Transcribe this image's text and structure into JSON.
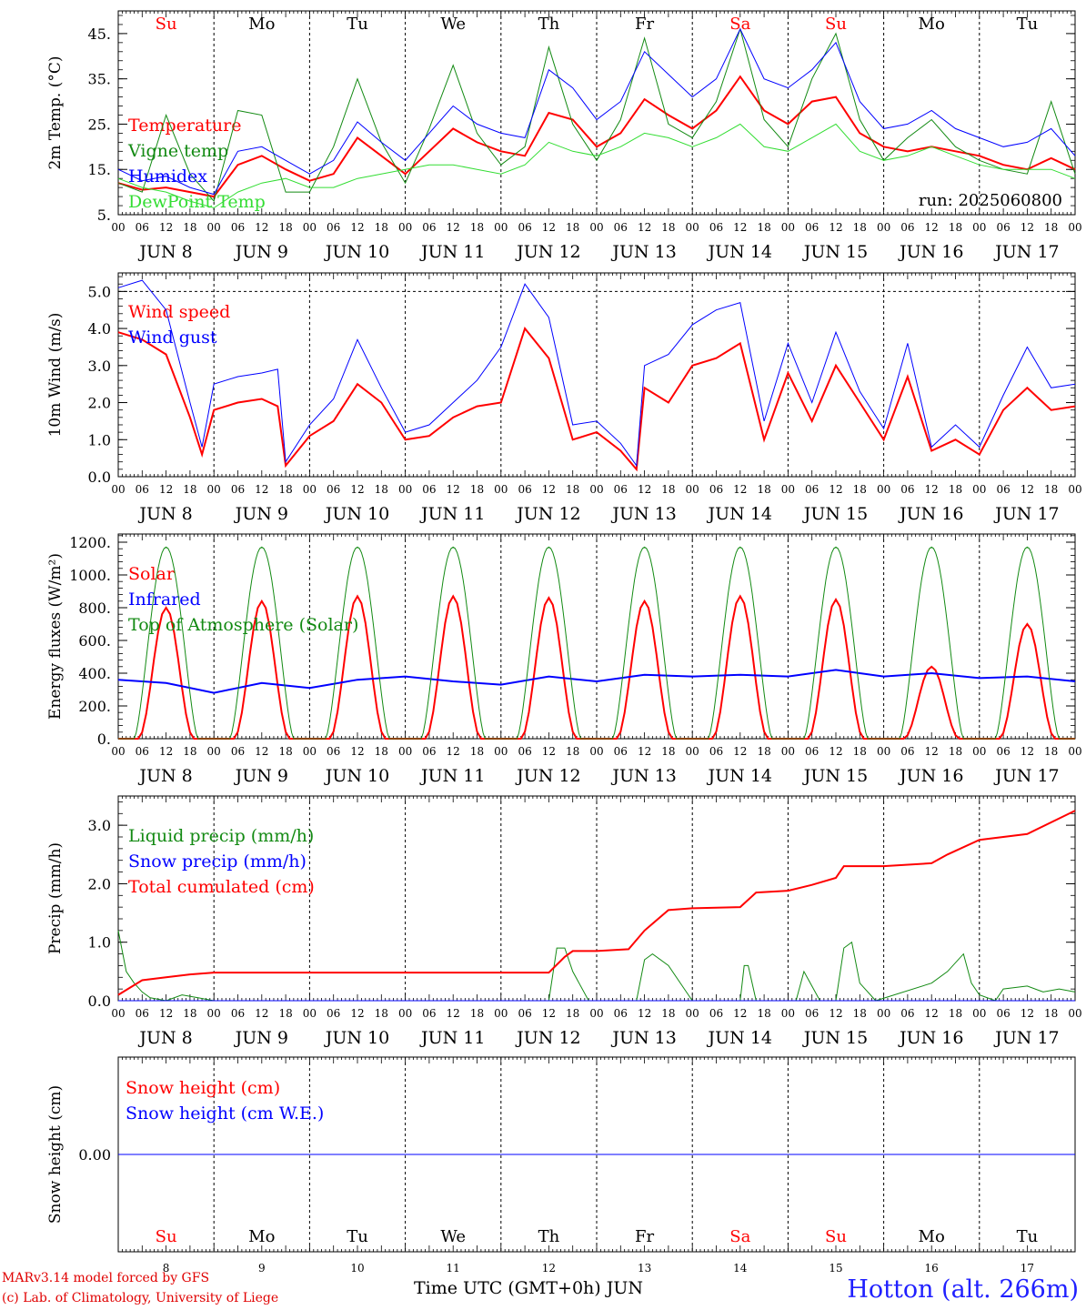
{
  "run_label": "run: 2025060800",
  "station_title": "Hotton (alt. 266m)",
  "model_credit": "MARv3.14 model forced by GFS",
  "copyright": "(c) Lab. of Climatology, University of Liege",
  "time_axis_label": "Time UTC (GMT+0h) JUN",
  "colors": {
    "red": "#ff0000",
    "green": "#138a13",
    "blue": "#0000ff",
    "lightgreen": "#33dd33",
    "grid": "#000000"
  },
  "days": [
    {
      "dow": "Su",
      "date": "8",
      "weekend": true
    },
    {
      "dow": "Mo",
      "date": "9",
      "weekend": false
    },
    {
      "dow": "Tu",
      "date": "10",
      "weekend": false
    },
    {
      "dow": "We",
      "date": "11",
      "weekend": false
    },
    {
      "dow": "Th",
      "date": "12",
      "weekend": false
    },
    {
      "dow": "Fr",
      "date": "13",
      "weekend": false
    },
    {
      "dow": "Sa",
      "date": "14",
      "weekend": true
    },
    {
      "dow": "Su",
      "date": "15",
      "weekend": true
    },
    {
      "dow": "Mo",
      "date": "16",
      "weekend": false
    },
    {
      "dow": "Tu",
      "date": "17",
      "weekend": false
    }
  ],
  "hour_ticks": [
    "00",
    "06",
    "12",
    "18"
  ],
  "month_label": "JUN",
  "chart_data": [
    {
      "type": "line",
      "ylabel": "2m Temp. (°C)",
      "ylim": [
        5,
        50
      ],
      "yticks": [
        5,
        15,
        25,
        35,
        45
      ],
      "ytick_labels": [
        "5.",
        "15.",
        "25.",
        "35.",
        "45."
      ],
      "x_unit": "hours since JUN 8 00 UTC",
      "series": [
        {
          "name": "Temperature",
          "color": "#ff0000",
          "width": 2,
          "x": [
            0,
            6,
            12,
            18,
            24,
            30,
            36,
            42,
            48,
            54,
            60,
            66,
            72,
            78,
            84,
            90,
            96,
            102,
            108,
            114,
            120,
            126,
            132,
            138,
            144,
            150,
            156,
            162,
            168,
            174,
            180,
            186,
            192,
            198,
            204,
            210,
            216,
            222,
            228,
            234,
            240
          ],
          "y": [
            12,
            10.5,
            11,
            10,
            9,
            16,
            18,
            15,
            12.5,
            14,
            22,
            18,
            14,
            19,
            24,
            21,
            19,
            18,
            27.5,
            26,
            20,
            23,
            30.5,
            27,
            24,
            28,
            35.5,
            28,
            25,
            30,
            31,
            23,
            20,
            19,
            20,
            19,
            18,
            16,
            15,
            17.5,
            15
          ]
        },
        {
          "name": "Vigne temp",
          "color": "#138a13",
          "width": 1,
          "x": [
            0,
            6,
            12,
            18,
            24,
            30,
            36,
            42,
            48,
            54,
            60,
            66,
            72,
            78,
            84,
            90,
            96,
            102,
            108,
            114,
            120,
            126,
            132,
            138,
            144,
            150,
            156,
            162,
            168,
            174,
            180,
            186,
            192,
            198,
            204,
            210,
            216,
            222,
            228,
            234,
            240
          ],
          "y": [
            12,
            10,
            27,
            14,
            8,
            28,
            27,
            10,
            10,
            20,
            35,
            21,
            12,
            24,
            38,
            23,
            16,
            20,
            42,
            25,
            17,
            26,
            44,
            25,
            22,
            30,
            46,
            26,
            20,
            35,
            45,
            26,
            17,
            22,
            26,
            20,
            17,
            15,
            14,
            30,
            14
          ]
        },
        {
          "name": "Humidex",
          "color": "#0000ff",
          "width": 1,
          "x": [
            0,
            6,
            12,
            18,
            24,
            30,
            36,
            42,
            48,
            54,
            60,
            66,
            72,
            78,
            84,
            90,
            96,
            102,
            108,
            114,
            120,
            126,
            132,
            138,
            144,
            150,
            156,
            162,
            168,
            174,
            180,
            186,
            192,
            198,
            204,
            210,
            216,
            222,
            228,
            234,
            240
          ],
          "y": [
            15,
            12.5,
            13.5,
            11,
            9.5,
            19,
            20,
            17,
            14,
            17,
            25.5,
            21,
            17,
            23,
            29,
            25,
            23,
            22,
            37,
            33,
            26,
            30,
            41,
            36,
            31,
            35,
            46,
            35,
            33,
            37,
            43,
            30,
            24,
            25,
            28,
            24,
            22,
            20,
            21,
            24,
            18
          ]
        },
        {
          "name": "DewPoint Temp",
          "color": "#33dd33",
          "width": 1,
          "x": [
            0,
            6,
            12,
            18,
            24,
            30,
            36,
            42,
            48,
            54,
            60,
            66,
            72,
            78,
            84,
            90,
            96,
            102,
            108,
            114,
            120,
            126,
            132,
            138,
            144,
            150,
            156,
            162,
            168,
            174,
            180,
            186,
            192,
            198,
            204,
            210,
            216,
            222,
            228,
            234,
            240
          ],
          "y": [
            13,
            11,
            10,
            8,
            6.5,
            10,
            12,
            13,
            11,
            11,
            13,
            14,
            15,
            16,
            16,
            15,
            14,
            16,
            21,
            19,
            18,
            20,
            23,
            22,
            20,
            22,
            25,
            20,
            19,
            22,
            25,
            19,
            17,
            18,
            20,
            18,
            16,
            15,
            15,
            15,
            13
          ]
        }
      ]
    },
    {
      "type": "line",
      "ylabel": "10m Wind (m/s)",
      "ylim": [
        0,
        5.5
      ],
      "yticks": [
        0,
        1,
        2,
        3,
        4,
        5
      ],
      "ytick_labels": [
        "0.0",
        "1.0",
        "2.0",
        "3.0",
        "4.0",
        "5.0"
      ],
      "ref_line": 5,
      "series": [
        {
          "name": "Wind speed",
          "color": "#ff0000",
          "width": 2,
          "x": [
            0,
            6,
            12,
            18,
            21,
            24,
            30,
            36,
            40,
            42,
            48,
            54,
            60,
            66,
            72,
            78,
            84,
            90,
            96,
            102,
            108,
            114,
            120,
            126,
            130,
            132,
            138,
            144,
            150,
            156,
            162,
            168,
            174,
            180,
            186,
            192,
            198,
            204,
            210,
            216,
            222,
            228,
            234,
            240
          ],
          "y": [
            3.9,
            3.7,
            3.3,
            1.6,
            0.6,
            1.8,
            2.0,
            2.1,
            1.9,
            0.3,
            1.1,
            1.5,
            2.5,
            2.0,
            1.0,
            1.1,
            1.6,
            1.9,
            2.0,
            4.0,
            3.2,
            1.0,
            1.2,
            0.7,
            0.2,
            2.4,
            2.0,
            3.0,
            3.2,
            3.6,
            1.0,
            2.8,
            1.5,
            3.0,
            2.0,
            1.0,
            2.7,
            0.7,
            1.0,
            0.6,
            1.8,
            2.4,
            1.8,
            1.9
          ]
        },
        {
          "name": "Wind gust",
          "color": "#0000ff",
          "width": 1,
          "x": [
            0,
            6,
            12,
            18,
            21,
            24,
            30,
            36,
            40,
            42,
            48,
            54,
            60,
            66,
            72,
            78,
            84,
            90,
            96,
            102,
            108,
            114,
            120,
            126,
            130,
            132,
            138,
            144,
            150,
            156,
            162,
            168,
            174,
            180,
            186,
            192,
            198,
            204,
            210,
            216,
            222,
            228,
            234,
            240
          ],
          "y": [
            5.1,
            5.3,
            4.5,
            2.0,
            0.8,
            2.5,
            2.7,
            2.8,
            2.9,
            0.4,
            1.4,
            2.1,
            3.7,
            2.4,
            1.2,
            1.4,
            2.0,
            2.6,
            3.5,
            5.2,
            4.3,
            1.4,
            1.5,
            0.9,
            0.3,
            3.0,
            3.3,
            4.1,
            4.5,
            4.7,
            1.5,
            3.6,
            2.0,
            3.9,
            2.3,
            1.3,
            3.6,
            0.8,
            1.4,
            0.8,
            2.2,
            3.5,
            2.4,
            2.5
          ]
        }
      ]
    },
    {
      "type": "line",
      "ylabel": "Energy fluxes (W/m²)",
      "ylim": [
        0,
        1250
      ],
      "yticks": [
        0,
        200,
        400,
        600,
        800,
        1000,
        1200
      ],
      "ytick_labels": [
        "0.",
        "200.",
        "400.",
        "600.",
        "800.",
        "1000.",
        "1200."
      ],
      "series": [
        {
          "name": "Solar",
          "color": "#ff0000",
          "width": 2,
          "peaks": [
            [
              12,
              800
            ],
            [
              36,
              840
            ],
            [
              60,
              870
            ],
            [
              84,
              870
            ],
            [
              108,
              860
            ],
            [
              132,
              840
            ],
            [
              156,
              870
            ],
            [
              180,
              850
            ],
            [
              204,
              440
            ],
            [
              228,
              700
            ]
          ]
        },
        {
          "name": "Infrared",
          "color": "#0000ff",
          "width": 2,
          "x": [
            0,
            12,
            24,
            36,
            48,
            60,
            72,
            84,
            96,
            108,
            120,
            132,
            144,
            156,
            168,
            180,
            192,
            204,
            216,
            228,
            240
          ],
          "y": [
            360,
            340,
            280,
            340,
            310,
            360,
            380,
            350,
            330,
            380,
            350,
            390,
            380,
            390,
            380,
            420,
            380,
            400,
            370,
            380,
            350
          ]
        },
        {
          "name": "Top of Atmosphere (Solar)",
          "color": "#138a13",
          "width": 1,
          "peak": 1170,
          "sunrise_h": 4,
          "sunset_h": 20
        }
      ]
    },
    {
      "type": "line",
      "ylabel": "Precip (mm/h)",
      "ylim": [
        0,
        3.5
      ],
      "yticks": [
        0,
        1,
        2,
        3
      ],
      "ytick_labels": [
        "0.0",
        "1.0",
        "2.0",
        "3.0"
      ],
      "series": [
        {
          "name": "Liquid precip (mm/h)",
          "color": "#138a13",
          "width": 1,
          "x": [
            0,
            2,
            4,
            6,
            8,
            12,
            16,
            20,
            24,
            108,
            110,
            112,
            114,
            118,
            120,
            130,
            132,
            134,
            138,
            142,
            144,
            156,
            157,
            158,
            160,
            170,
            172,
            176,
            180,
            182,
            184,
            186,
            190,
            204,
            208,
            212,
            214,
            216,
            220,
            222,
            228,
            232,
            236,
            240
          ],
          "y": [
            1.2,
            0.5,
            0.3,
            0.15,
            0.05,
            0,
            0.1,
            0.05,
            0,
            0,
            0.9,
            0.9,
            0.5,
            0,
            0,
            0,
            0.7,
            0.8,
            0.6,
            0.2,
            0,
            0,
            0.6,
            0.6,
            0,
            0,
            0.5,
            0,
            0,
            0.9,
            1.0,
            0.3,
            0,
            0.3,
            0.5,
            0.8,
            0.3,
            0.1,
            0,
            0.2,
            0.25,
            0.15,
            0.2,
            0.15
          ]
        },
        {
          "name": "Snow precip (mm/h)",
          "color": "#0000ff",
          "width": 1,
          "x": [
            0,
            240
          ],
          "y": [
            0,
            0
          ]
        },
        {
          "name": "Total cumulated (cm)",
          "color": "#ff0000",
          "width": 2,
          "x": [
            0,
            6,
            12,
            18,
            24,
            48,
            72,
            96,
            108,
            112,
            114,
            120,
            128,
            132,
            138,
            144,
            156,
            160,
            168,
            174,
            180,
            182,
            192,
            204,
            208,
            216,
            228,
            240
          ],
          "y": [
            0.1,
            0.35,
            0.4,
            0.45,
            0.48,
            0.48,
            0.48,
            0.48,
            0.48,
            0.75,
            0.85,
            0.85,
            0.88,
            1.2,
            1.55,
            1.58,
            1.6,
            1.85,
            1.88,
            1.98,
            2.1,
            2.3,
            2.3,
            2.35,
            2.5,
            2.75,
            2.85,
            3.25
          ]
        }
      ]
    },
    {
      "type": "line",
      "ylabel": "Snow height (cm)",
      "ylim": [
        -1,
        1
      ],
      "yticks": [
        0
      ],
      "ytick_labels": [
        "0.00"
      ],
      "series": [
        {
          "name": "Snow height (cm)",
          "color": "#ff0000",
          "width": 1,
          "x": [
            0,
            240
          ],
          "y": [
            0,
            0
          ]
        },
        {
          "name": "Snow height (cm W.E.)",
          "color": "#0000ff",
          "width": 1,
          "x": [
            0,
            240
          ],
          "y": [
            0,
            0
          ]
        }
      ]
    }
  ]
}
